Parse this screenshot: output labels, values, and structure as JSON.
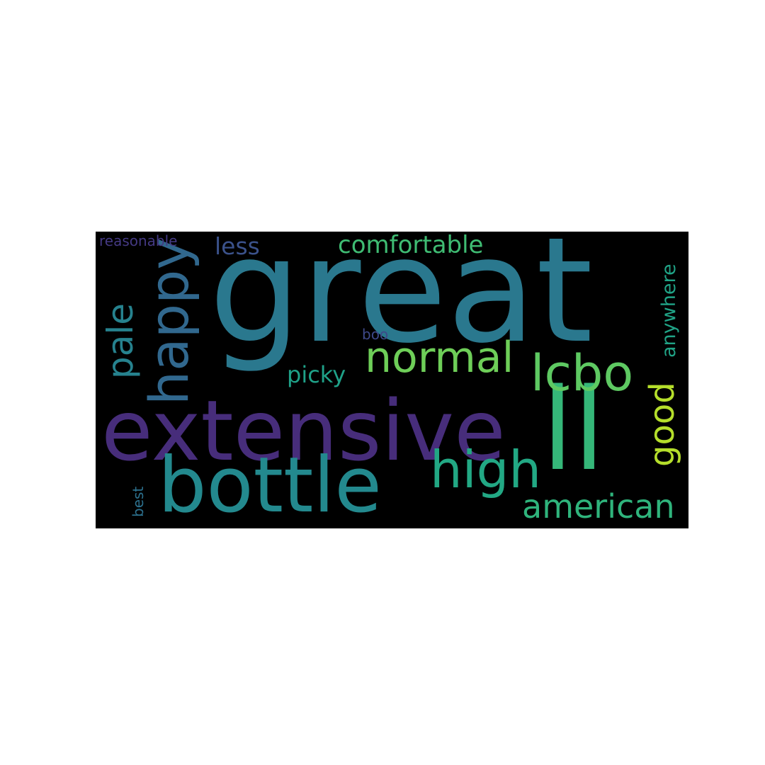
{
  "words": [
    {
      "text": "great",
      "color": "#2a788e"
    },
    {
      "text": "extensive",
      "color": "#472d7b"
    },
    {
      "text": "ll",
      "color": "#35b779"
    },
    {
      "text": "bottle",
      "color": "#23898e"
    },
    {
      "text": "happy",
      "color": "#31688e"
    },
    {
      "text": "normal",
      "color": "#6ece58"
    },
    {
      "text": "lcbo",
      "color": "#5ec962"
    },
    {
      "text": "high",
      "color": "#22a884"
    },
    {
      "text": "american",
      "color": "#2fb47c"
    },
    {
      "text": "pale",
      "color": "#26828e"
    },
    {
      "text": "comfortable",
      "color": "#3fbc73"
    },
    {
      "text": "good",
      "color": "#b5de2b"
    },
    {
      "text": "less",
      "color": "#3b528b"
    },
    {
      "text": "picky",
      "color": "#1fa188"
    },
    {
      "text": "anywhere",
      "color": "#20a386"
    },
    {
      "text": "reasonable",
      "color": "#443983"
    },
    {
      "text": "boo",
      "color": "#3e4989"
    },
    {
      "text": "best",
      "color": "#2c718e"
    }
  ]
}
